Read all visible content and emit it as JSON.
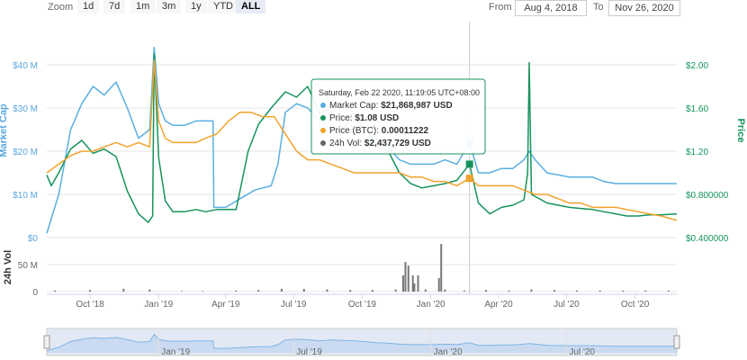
{
  "toolbar": {
    "zoom_label": "Zoom",
    "zoom_options": [
      "1d",
      "7d",
      "1m",
      "3m",
      "1y",
      "YTD",
      "ALL"
    ],
    "active_zoom": "ALL",
    "from_label": "From",
    "from_value": "Aug 4, 2018",
    "to_label": "To",
    "to_value": "Nov 26, 2020"
  },
  "colors": {
    "market_cap": "#5aaee0",
    "price_usd": "#17935b",
    "price_btc": "#f0a22a",
    "volume": "#777777",
    "navigator": "#7fb5e6"
  },
  "tooltip": {
    "title": "Saturday, Feb 22 2020, 11:19:05 UTC+08:00",
    "rows": [
      {
        "label": "Market Cap:",
        "value": "$21,868,987 USD",
        "color": "#5aaee0"
      },
      {
        "label": "Price:",
        "value": "$1.08 USD",
        "color": "#17935b"
      },
      {
        "label": "Price (BTC):",
        "value": "0.00011222",
        "color": "#f0a22a"
      },
      {
        "label": "24h Vol:",
        "value": "$2,437,729 USD",
        "color": "#666666"
      }
    ]
  },
  "chart_data": {
    "type": "line",
    "date_range": [
      "2018-08-04",
      "2020-11-26"
    ],
    "x_tick_labels": [
      "Oct '18",
      "Jan '19",
      "Apr '19",
      "Jul '19",
      "Oct '19",
      "Jan '20",
      "Apr '20",
      "Jul '20",
      "Oct '20"
    ],
    "y_left": {
      "label": "Market Cap",
      "ticks": [
        "$0",
        "$10 M",
        "$20 M",
        "$30 M",
        "$40 M"
      ]
    },
    "y_right": {
      "label": "Price",
      "ticks": [
        "$0.400000",
        "$0.800000",
        "$1.20",
        "$1.60",
        "$2.00"
      ]
    },
    "volume_axis": {
      "label": "24h Vol",
      "ticks": [
        "0",
        "50 M"
      ]
    },
    "navigator_labels": [
      "Jan '19",
      "Jul '19",
      "Jan '20",
      "Jul '20"
    ],
    "series": [
      {
        "name": "Market Cap",
        "axis": "left",
        "points": [
          [
            "2018-08-04",
            1
          ],
          [
            "2018-08-20",
            10
          ],
          [
            "2018-09-05",
            25
          ],
          [
            "2018-09-20",
            31
          ],
          [
            "2018-10-05",
            35
          ],
          [
            "2018-10-20",
            33
          ],
          [
            "2018-11-05",
            36
          ],
          [
            "2018-11-20",
            30
          ],
          [
            "2018-12-05",
            23
          ],
          [
            "2018-12-20",
            25
          ],
          [
            "2018-12-26",
            44
          ],
          [
            "2019-01-01",
            31
          ],
          [
            "2019-01-10",
            27
          ],
          [
            "2019-01-20",
            26
          ],
          [
            "2019-02-05",
            26
          ],
          [
            "2019-02-20",
            27
          ],
          [
            "2019-03-05",
            27
          ],
          [
            "2019-03-15",
            27
          ],
          [
            "2019-03-16",
            7
          ],
          [
            "2019-04-01",
            7
          ],
          [
            "2019-04-20",
            9
          ],
          [
            "2019-05-10",
            11
          ],
          [
            "2019-06-01",
            12
          ],
          [
            "2019-06-10",
            17
          ],
          [
            "2019-06-20",
            29
          ],
          [
            "2019-07-05",
            31
          ],
          [
            "2019-07-20",
            30
          ],
          [
            "2019-08-05",
            27
          ],
          [
            "2019-08-20",
            29
          ],
          [
            "2019-09-05",
            28
          ],
          [
            "2019-09-20",
            27
          ],
          [
            "2019-10-05",
            25
          ],
          [
            "2019-10-20",
            22
          ],
          [
            "2019-11-05",
            21
          ],
          [
            "2019-11-20",
            18
          ],
          [
            "2019-12-05",
            17
          ],
          [
            "2019-12-20",
            17
          ],
          [
            "2020-01-05",
            17
          ],
          [
            "2020-01-20",
            18
          ],
          [
            "2020-02-05",
            17
          ],
          [
            "2020-02-22",
            21.9
          ],
          [
            "2020-03-05",
            15
          ],
          [
            "2020-03-20",
            15
          ],
          [
            "2020-04-05",
            16
          ],
          [
            "2020-04-20",
            16
          ],
          [
            "2020-05-05",
            18
          ],
          [
            "2020-05-12",
            20
          ],
          [
            "2020-05-20",
            18
          ],
          [
            "2020-06-05",
            15
          ],
          [
            "2020-06-20",
            14.5
          ],
          [
            "2020-07-05",
            14
          ],
          [
            "2020-07-20",
            14
          ],
          [
            "2020-08-05",
            14
          ],
          [
            "2020-08-20",
            13
          ],
          [
            "2020-09-05",
            12.5
          ],
          [
            "2020-09-20",
            12.5
          ],
          [
            "2020-10-05",
            12.5
          ],
          [
            "2020-10-20",
            12.5
          ],
          [
            "2020-11-05",
            12.5
          ],
          [
            "2020-11-26",
            12.5
          ]
        ]
      },
      {
        "name": "Price",
        "axis": "right",
        "points": [
          [
            "2018-08-04",
            0.98
          ],
          [
            "2018-08-10",
            0.88
          ],
          [
            "2018-08-20",
            1.0
          ],
          [
            "2018-09-05",
            1.22
          ],
          [
            "2018-09-20",
            1.3
          ],
          [
            "2018-10-05",
            1.18
          ],
          [
            "2018-10-20",
            1.22
          ],
          [
            "2018-11-05",
            1.15
          ],
          [
            "2018-11-20",
            0.83
          ],
          [
            "2018-12-05",
            0.62
          ],
          [
            "2018-12-18",
            0.54
          ],
          [
            "2018-12-24",
            0.6
          ],
          [
            "2018-12-26",
            2.1
          ],
          [
            "2019-01-01",
            1.14
          ],
          [
            "2019-01-10",
            0.74
          ],
          [
            "2019-01-20",
            0.64
          ],
          [
            "2019-02-05",
            0.64
          ],
          [
            "2019-02-20",
            0.66
          ],
          [
            "2019-03-05",
            0.64
          ],
          [
            "2019-03-20",
            0.66
          ],
          [
            "2019-04-01",
            0.66
          ],
          [
            "2019-04-15",
            0.66
          ],
          [
            "2019-05-01",
            1.2
          ],
          [
            "2019-05-15",
            1.45
          ],
          [
            "2019-06-01",
            1.6
          ],
          [
            "2019-06-20",
            1.75
          ],
          [
            "2019-07-05",
            1.7
          ],
          [
            "2019-07-20",
            1.8
          ],
          [
            "2019-08-05",
            1.55
          ],
          [
            "2019-08-20",
            1.6
          ],
          [
            "2019-09-05",
            1.4
          ],
          [
            "2019-09-20",
            1.55
          ],
          [
            "2019-10-05",
            1.4
          ],
          [
            "2019-10-20",
            1.25
          ],
          [
            "2019-11-05",
            1.2
          ],
          [
            "2019-11-20",
            1.0
          ],
          [
            "2019-12-05",
            0.9
          ],
          [
            "2019-12-20",
            0.86
          ],
          [
            "2020-01-05",
            0.88
          ],
          [
            "2020-01-20",
            0.9
          ],
          [
            "2020-02-05",
            0.93
          ],
          [
            "2020-02-22",
            1.08
          ],
          [
            "2020-03-05",
            0.72
          ],
          [
            "2020-03-20",
            0.62
          ],
          [
            "2020-04-05",
            0.68
          ],
          [
            "2020-04-20",
            0.7
          ],
          [
            "2020-05-05",
            0.75
          ],
          [
            "2020-05-10",
            1.0
          ],
          [
            "2020-05-12",
            2.02
          ],
          [
            "2020-05-15",
            0.8
          ],
          [
            "2020-06-05",
            0.72
          ],
          [
            "2020-06-20",
            0.7
          ],
          [
            "2020-07-05",
            0.68
          ],
          [
            "2020-07-20",
            0.67
          ],
          [
            "2020-08-05",
            0.66
          ],
          [
            "2020-08-20",
            0.64
          ],
          [
            "2020-09-05",
            0.62
          ],
          [
            "2020-09-20",
            0.6
          ],
          [
            "2020-10-05",
            0.6
          ],
          [
            "2020-10-20",
            0.61
          ],
          [
            "2020-11-05",
            0.61
          ],
          [
            "2020-11-26",
            0.62
          ]
        ]
      },
      {
        "name": "Price (BTC)",
        "axis": "left",
        "points": [
          [
            "2018-08-04",
            15
          ],
          [
            "2018-08-20",
            17
          ],
          [
            "2018-09-05",
            19
          ],
          [
            "2018-09-20",
            20
          ],
          [
            "2018-10-05",
            20
          ],
          [
            "2018-10-20",
            21
          ],
          [
            "2018-11-05",
            22
          ],
          [
            "2018-11-20",
            21
          ],
          [
            "2018-12-05",
            22
          ],
          [
            "2018-12-20",
            21
          ],
          [
            "2018-12-26",
            41
          ],
          [
            "2019-01-01",
            27
          ],
          [
            "2019-01-10",
            23
          ],
          [
            "2019-01-20",
            22
          ],
          [
            "2019-02-05",
            22
          ],
          [
            "2019-02-20",
            22
          ],
          [
            "2019-03-05",
            23
          ],
          [
            "2019-03-20",
            24
          ],
          [
            "2019-04-05",
            27
          ],
          [
            "2019-04-20",
            29
          ],
          [
            "2019-05-05",
            29
          ],
          [
            "2019-05-20",
            28
          ],
          [
            "2019-06-05",
            28
          ],
          [
            "2019-06-20",
            24
          ],
          [
            "2019-07-05",
            20
          ],
          [
            "2019-07-20",
            18
          ],
          [
            "2019-08-05",
            18
          ],
          [
            "2019-08-20",
            17
          ],
          [
            "2019-09-05",
            16
          ],
          [
            "2019-09-20",
            15
          ],
          [
            "2019-10-05",
            15
          ],
          [
            "2019-10-20",
            15
          ],
          [
            "2019-11-05",
            15
          ],
          [
            "2019-11-20",
            15
          ],
          [
            "2019-12-05",
            14
          ],
          [
            "2019-12-20",
            14
          ],
          [
            "2020-01-05",
            13
          ],
          [
            "2020-01-20",
            13
          ],
          [
            "2020-02-05",
            12
          ],
          [
            "2020-02-22",
            13.7
          ],
          [
            "2020-03-05",
            12
          ],
          [
            "2020-03-20",
            12
          ],
          [
            "2020-04-05",
            12
          ],
          [
            "2020-04-20",
            12
          ],
          [
            "2020-05-05",
            11
          ],
          [
            "2020-05-20",
            10
          ],
          [
            "2020-06-05",
            10
          ],
          [
            "2020-06-20",
            9
          ],
          [
            "2020-07-05",
            8
          ],
          [
            "2020-07-20",
            8
          ],
          [
            "2020-08-05",
            7
          ],
          [
            "2020-08-20",
            7
          ],
          [
            "2020-09-05",
            7
          ],
          [
            "2020-09-20",
            6.5
          ],
          [
            "2020-10-05",
            6
          ],
          [
            "2020-10-20",
            5.5
          ],
          [
            "2020-11-05",
            5
          ],
          [
            "2020-11-26",
            4
          ]
        ]
      },
      {
        "name": "24h Vol",
        "axis": "volume",
        "points": [
          [
            "2018-08-15",
            2
          ],
          [
            "2018-10-01",
            3
          ],
          [
            "2018-11-15",
            5
          ],
          [
            "2018-12-20",
            4
          ],
          [
            "2019-02-01",
            1
          ],
          [
            "2019-03-01",
            1
          ],
          [
            "2019-04-15",
            2
          ],
          [
            "2019-05-15",
            3
          ],
          [
            "2019-06-15",
            5
          ],
          [
            "2019-07-15",
            5
          ],
          [
            "2019-08-15",
            4
          ],
          [
            "2019-09-15",
            3
          ],
          [
            "2019-10-15",
            3
          ],
          [
            "2019-11-15",
            4
          ],
          [
            "2019-11-25",
            30
          ],
          [
            "2019-11-28",
            55
          ],
          [
            "2019-12-02",
            48
          ],
          [
            "2019-12-08",
            30
          ],
          [
            "2019-12-10",
            15
          ],
          [
            "2019-12-15",
            30
          ],
          [
            "2019-12-25",
            4
          ],
          [
            "2020-01-12",
            25
          ],
          [
            "2020-01-15",
            88
          ],
          [
            "2020-01-20",
            4
          ],
          [
            "2020-02-15",
            2
          ],
          [
            "2020-03-15",
            3
          ],
          [
            "2020-04-15",
            2
          ],
          [
            "2020-05-15",
            4
          ],
          [
            "2020-06-15",
            3
          ],
          [
            "2020-07-15",
            2
          ],
          [
            "2020-08-15",
            2
          ],
          [
            "2020-09-15",
            2
          ],
          [
            "2020-10-15",
            2
          ],
          [
            "2020-11-15",
            2
          ]
        ]
      }
    ]
  }
}
